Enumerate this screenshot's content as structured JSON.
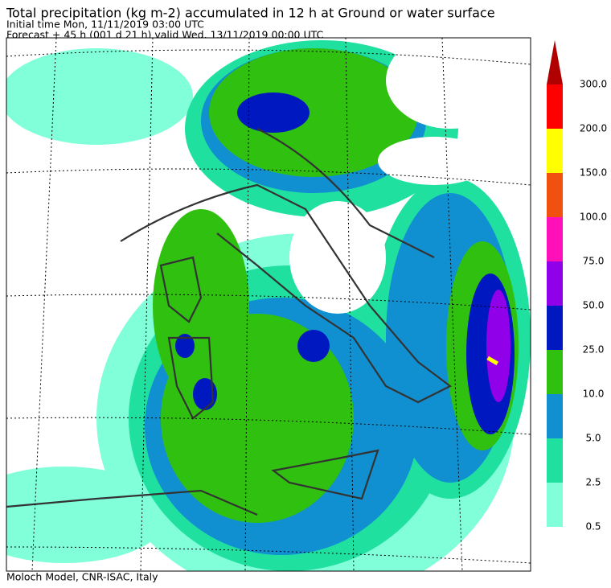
{
  "header": {
    "title": "Total precipitation (kg m-2) accumulated in  12 h at Ground or water surface",
    "initial_time": "Initial time  Mon, 11/11/2019  03:00 UTC",
    "forecast": "Forecast  +  45 h  (001 d 21 h)  valid Wed, 13/11/2019 00:00 UTC"
  },
  "colorbar": {
    "labels": [
      "0.5",
      "2.5",
      "5.0",
      "10.0",
      "25.0",
      "50.0",
      "75.0",
      "100.0",
      "150.0",
      "200.0",
      "300.0"
    ],
    "colors": [
      "#80ffd8",
      "#20e0a0",
      "#1090d0",
      "#30c010",
      "#0018c0",
      "#9000e8",
      "#ff10b8",
      "#f05010",
      "#ffff00",
      "#ff0000",
      "#b00000"
    ]
  },
  "footer": "Moloch Model, CNR-ISAC, Italy"
}
